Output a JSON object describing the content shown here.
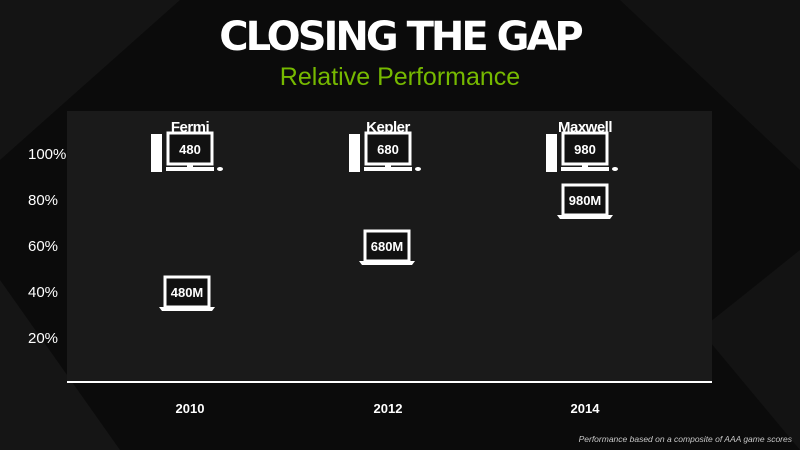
{
  "header": {
    "title": "CLOSING THE GAP",
    "subtitle": "Relative Performance"
  },
  "footnote": "Performance based on a composite of AAA game scores",
  "colors": {
    "accent": "#76b900",
    "background": "#0b0b0b",
    "plot_bg": "#1a1a1a",
    "text": "#ffffff"
  },
  "chart_data": {
    "type": "scatter",
    "title": "Relative Performance",
    "categories": [
      "2010",
      "2012",
      "2014"
    ],
    "architectures": [
      "Fermi",
      "Kepler",
      "Maxwell"
    ],
    "yticks": [
      "100%",
      "80%",
      "60%",
      "40%",
      "20%"
    ],
    "ytick_values": [
      100,
      80,
      60,
      40,
      20
    ],
    "ylim": [
      0,
      120
    ],
    "series": [
      {
        "name": "Desktop",
        "icon": "desktop-pc-icon",
        "labels": [
          "480",
          "680",
          "980"
        ],
        "values": [
          100,
          100,
          100
        ]
      },
      {
        "name": "Notebook",
        "icon": "laptop-icon",
        "labels": [
          "480M",
          "680M",
          "980M"
        ],
        "values": [
          40,
          60,
          80
        ]
      }
    ]
  }
}
